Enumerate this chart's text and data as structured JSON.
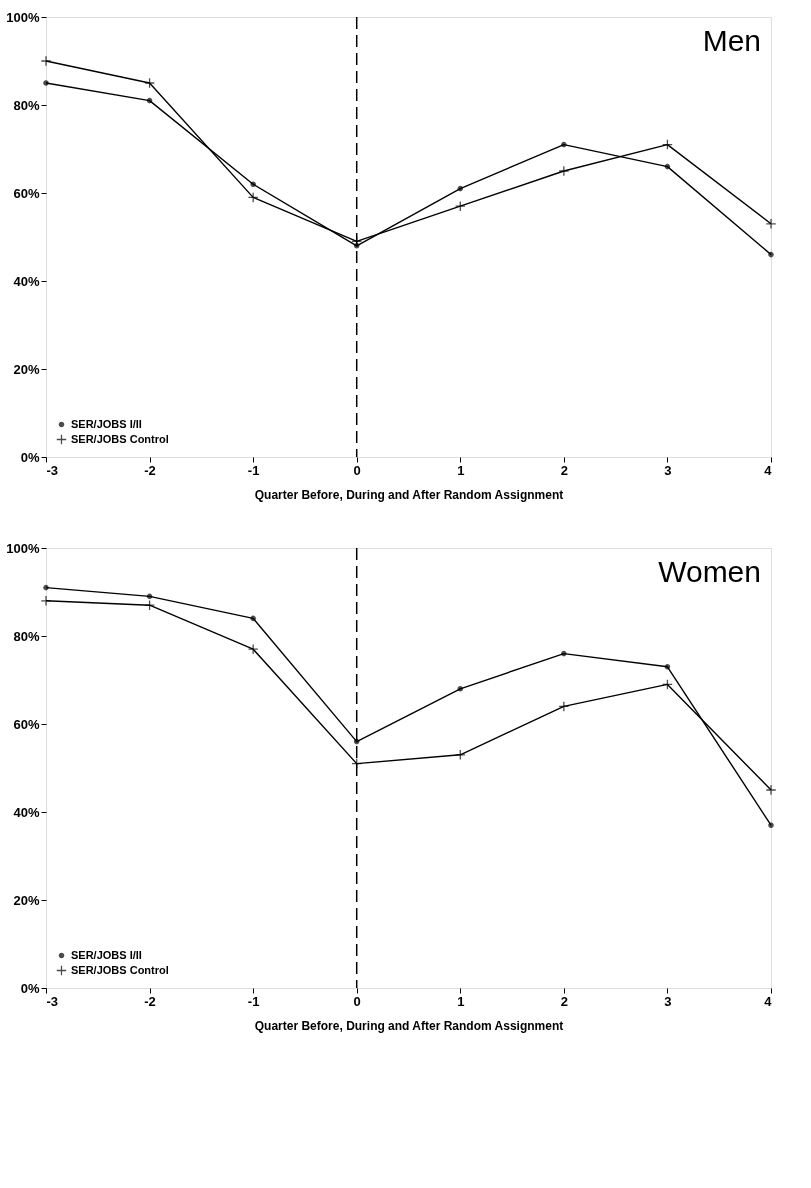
{
  "chart_data": [
    {
      "type": "line",
      "annotations": [
        "Men"
      ],
      "xlabel": "Quarter Before, During and After Random Assignment",
      "x": [
        -3,
        -2,
        -1,
        0,
        1,
        2,
        3,
        4
      ],
      "xlim": [
        -3,
        4
      ],
      "xticks": [
        -3,
        -2,
        -1,
        0,
        1,
        2,
        3,
        4
      ],
      "ylim": [
        0,
        100
      ],
      "yticks": [
        {
          "value": 0,
          "label": "0%"
        },
        {
          "value": 20,
          "label": "20%"
        },
        {
          "value": 40,
          "label": "40%"
        },
        {
          "value": 60,
          "label": "60%"
        },
        {
          "value": 80,
          "label": "80%"
        },
        {
          "value": 100,
          "label": "100%"
        }
      ],
      "grid": false,
      "legend": "bottom left",
      "ref_lines": [
        {
          "axis": "x",
          "value": 0,
          "color": "#000000",
          "line_style": "dashed"
        }
      ],
      "series": [
        {
          "name": "SER/JOBS I/II",
          "color": "#000000",
          "marker": "circle",
          "values": [
            85,
            81,
            62,
            48,
            61,
            71,
            66,
            46
          ]
        },
        {
          "name": "SER/JOBS Control",
          "color": "#000000",
          "marker": "cross",
          "values": [
            90,
            85,
            59,
            49,
            57,
            65,
            71,
            53
          ]
        }
      ]
    },
    {
      "type": "line",
      "annotations": [
        "Women"
      ],
      "xlabel": "Quarter Before, During and After Random Assignment",
      "x": [
        -3,
        -2,
        -1,
        0,
        1,
        2,
        3,
        4
      ],
      "xlim": [
        -3,
        4
      ],
      "xticks": [
        -3,
        -2,
        -1,
        0,
        1,
        2,
        3,
        4
      ],
      "ylim": [
        0,
        100
      ],
      "yticks": [
        {
          "value": 0,
          "label": "0%"
        },
        {
          "value": 20,
          "label": "20%"
        },
        {
          "value": 40,
          "label": "40%"
        },
        {
          "value": 60,
          "label": "60%"
        },
        {
          "value": 80,
          "label": "80%"
        },
        {
          "value": 100,
          "label": "100%"
        }
      ],
      "grid": false,
      "legend": "bottom left",
      "ref_lines": [
        {
          "axis": "x",
          "value": 0,
          "color": "#000000",
          "line_style": "dashed"
        }
      ],
      "series": [
        {
          "name": "SER/JOBS I/II",
          "color": "#000000",
          "marker": "circle",
          "values": [
            91,
            89,
            84,
            56,
            68,
            76,
            73,
            37
          ]
        },
        {
          "name": "SER/JOBS Control",
          "color": "#000000",
          "marker": "cross",
          "values": [
            88,
            87,
            77,
            51,
            53,
            64,
            69,
            45
          ]
        }
      ]
    }
  ]
}
